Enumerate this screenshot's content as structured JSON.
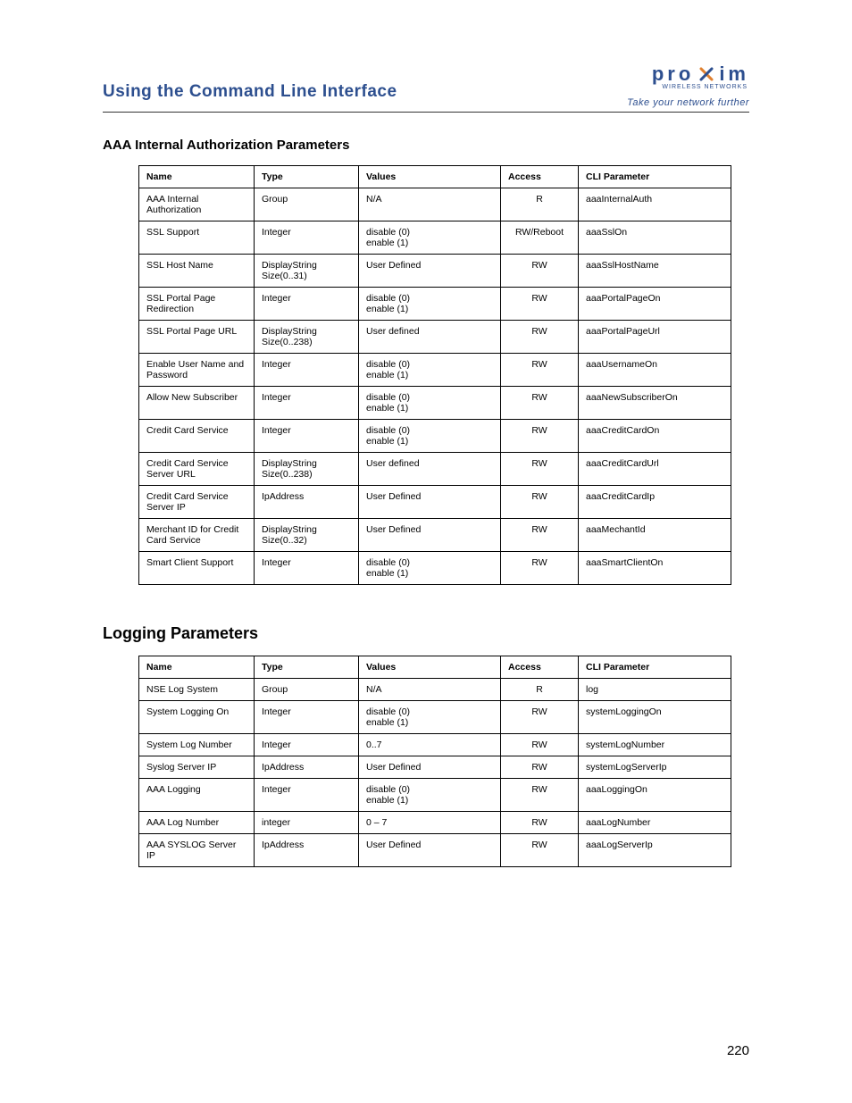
{
  "brand": {
    "name_left": "pro",
    "name_right": "im",
    "sub": "WIRELESS NETWORKS",
    "tagline": "Take your network further",
    "logo_color_primary": "#2d4f8f",
    "logo_color_accent": "#e08030"
  },
  "page_title": "Using the Command Line Interface",
  "page_number": "220",
  "columns": [
    "Name",
    "Type",
    "Values",
    "Access",
    "CLI Parameter"
  ],
  "section1": {
    "heading": "AAA Internal Authorization Parameters",
    "rows": [
      [
        "AAA Internal Authorization",
        "Group",
        "N/A",
        "R",
        "aaaInternalAuth"
      ],
      [
        "SSL Support",
        "Integer",
        "disable (0)\nenable (1)",
        "RW/Reboot",
        "aaaSslOn"
      ],
      [
        "SSL Host Name",
        "DisplayString Size(0..31)",
        "User Defined",
        "RW",
        "aaaSslHostName"
      ],
      [
        "SSL Portal Page Redirection",
        "Integer",
        "disable (0)\nenable (1)",
        "RW",
        "aaaPortalPageOn"
      ],
      [
        "SSL Portal Page URL",
        "DisplayString Size(0..238)",
        "User defined",
        "RW",
        "aaaPortalPageUrl"
      ],
      [
        "Enable User Name and Password",
        "Integer",
        "disable (0)\nenable (1)",
        "RW",
        "aaaUsernameOn"
      ],
      [
        "Allow New Subscriber",
        "Integer",
        "disable (0)\nenable (1)",
        "RW",
        "aaaNewSubscriberOn"
      ],
      [
        "Credit Card Service",
        "Integer",
        "disable (0)\nenable (1)",
        "RW",
        "aaaCreditCardOn"
      ],
      [
        "Credit Card Service Server URL",
        "DisplayString Size(0..238)",
        "User defined",
        "RW",
        "aaaCreditCardUrl"
      ],
      [
        "Credit Card Service Server IP",
        "IpAddress",
        "User Defined",
        "RW",
        "aaaCreditCardIp"
      ],
      [
        "Merchant ID for Credit Card Service",
        "DisplayString Size(0..32)",
        "User Defined",
        "RW",
        "aaaMechantId"
      ],
      [
        "Smart Client Support",
        "Integer",
        "disable (0)\nenable (1)",
        "RW",
        "aaaSmartClientOn"
      ]
    ]
  },
  "section2": {
    "heading": "Logging Parameters",
    "rows": [
      [
        "NSE Log System",
        "Group",
        "N/A",
        "R",
        "log"
      ],
      [
        "System Logging On",
        "Integer",
        "disable (0)\nenable (1)",
        "RW",
        "systemLoggingOn"
      ],
      [
        "System Log Number",
        "Integer",
        "0..7",
        "RW",
        "systemLogNumber"
      ],
      [
        "Syslog Server IP",
        "IpAddress",
        "User Defined",
        "RW",
        "systemLogServerIp"
      ],
      [
        "AAA Logging",
        "Integer",
        "disable (0)\nenable (1)",
        "RW",
        "aaaLoggingOn"
      ],
      [
        "AAA Log Number",
        "integer",
        "0 – 7",
        "RW",
        "aaaLogNumber"
      ],
      [
        "AAA SYSLOG Server IP",
        "IpAddress",
        "User Defined",
        "RW",
        "aaaLogServerIp"
      ]
    ]
  }
}
